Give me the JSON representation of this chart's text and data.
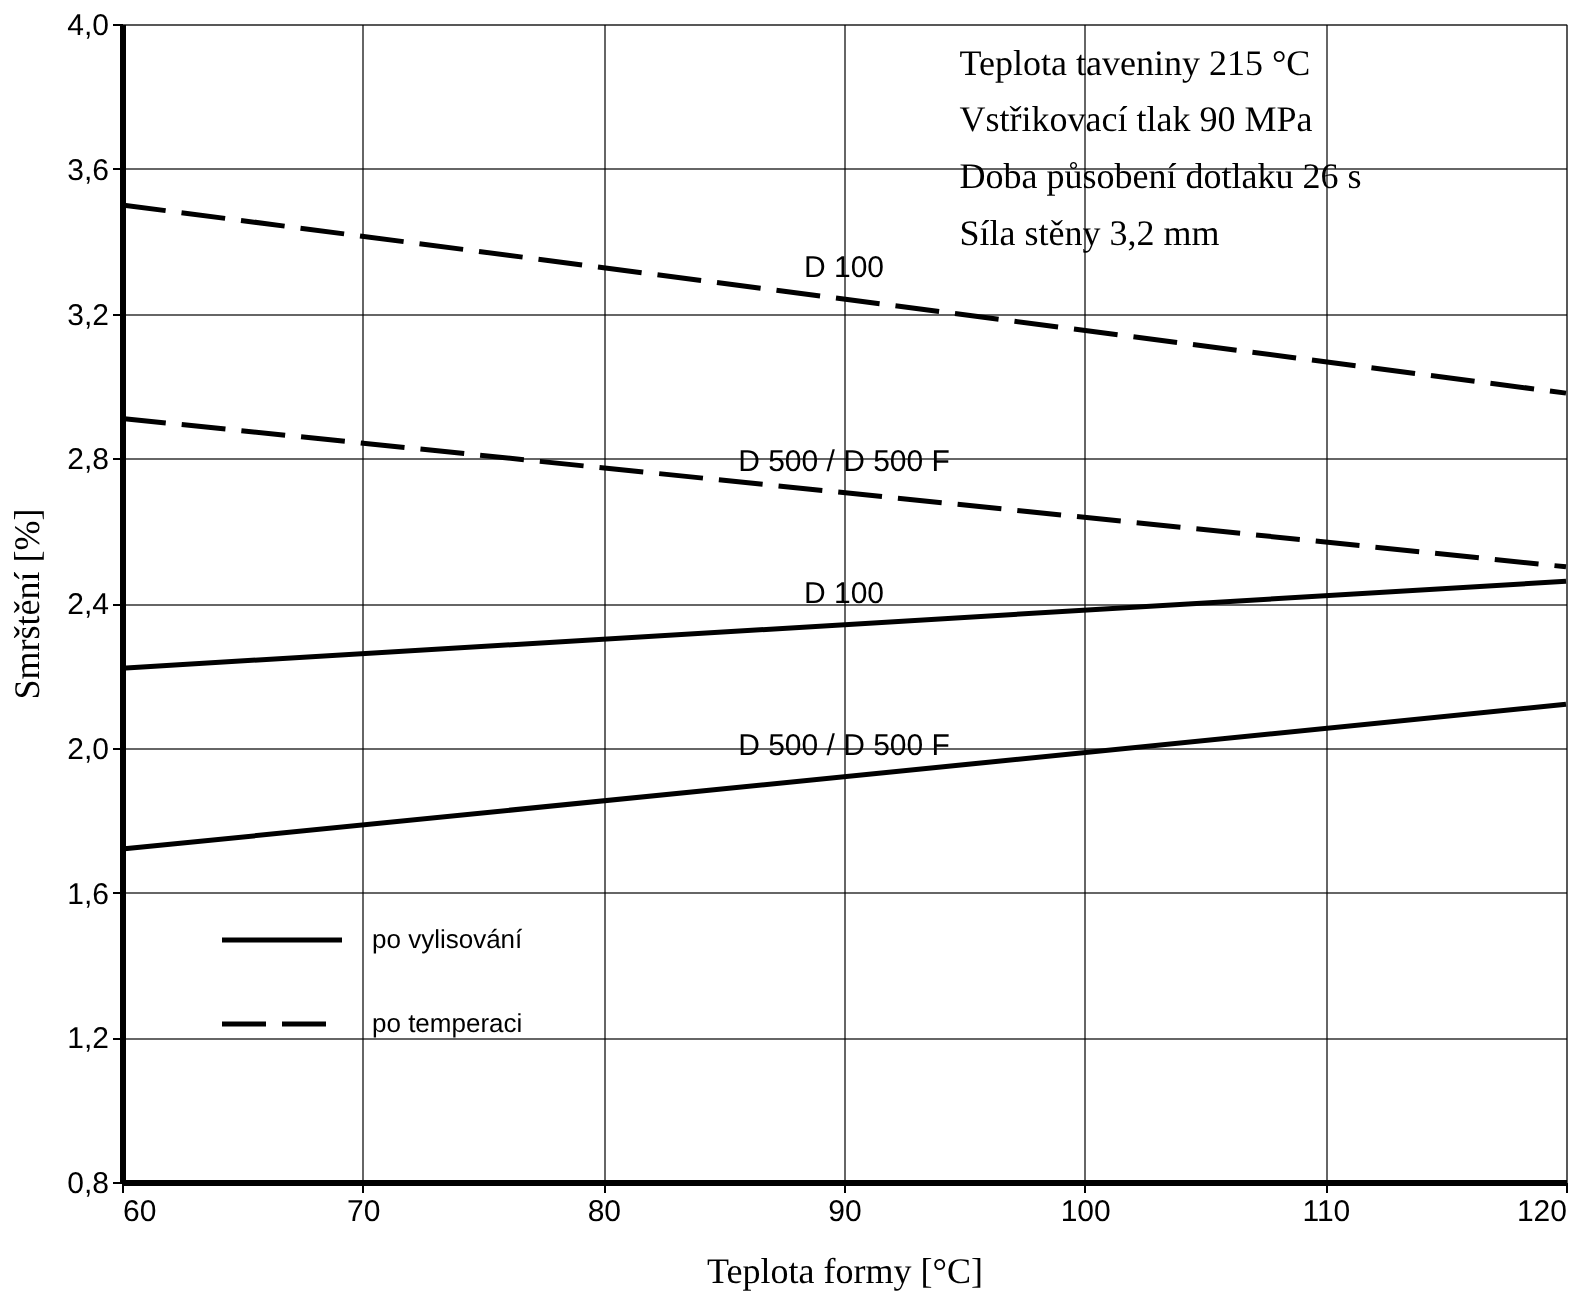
{
  "chart_data": {
    "type": "line",
    "xlabel": "Teplota formy [°C]",
    "ylabel": "Smrštění [%]",
    "x": [
      60,
      120
    ],
    "series": [
      {
        "name": "D 100",
        "color": "#000000",
        "line_style": "solid",
        "values": [
          2.22,
          2.46
        ]
      },
      {
        "name": "D 500 / D 500 F",
        "color": "#000000",
        "line_style": "solid",
        "values": [
          1.72,
          2.12
        ]
      },
      {
        "name": "D 100",
        "color": "#000000",
        "line_style": "dashed",
        "values": [
          3.5,
          2.98
        ]
      },
      {
        "name": "D 500 / D 500 F",
        "color": "#000000",
        "line_style": "dashed",
        "values": [
          2.91,
          2.5
        ]
      }
    ],
    "xlim": [
      60,
      120
    ],
    "xticks": [
      60,
      70,
      80,
      90,
      100,
      110,
      120
    ],
    "ylim": [
      0.8,
      4.0
    ],
    "yticks": [
      {
        "value": 0.8,
        "label": "0,8"
      },
      {
        "value": 1.2,
        "label": "1,2"
      },
      {
        "value": 1.6,
        "label": "1,6"
      },
      {
        "value": 2.0,
        "label": "2,0"
      },
      {
        "value": 2.4,
        "label": "2,4"
      },
      {
        "value": 2.8,
        "label": "2,8"
      },
      {
        "value": 3.2,
        "label": "3,2"
      },
      {
        "value": 3.6,
        "label": "3,6"
      },
      {
        "value": 4.0,
        "label": "4,0"
      }
    ],
    "grid": true,
    "marker": "none",
    "annotations": [
      "Teplota taveniny 215 °C",
      "Vstřikovací tlak 90 MPa",
      "Doba působení dotlaku 26 s",
      "Síla stěny 3,2 mm",
      "po vylisování",
      "po temperaci"
    ]
  }
}
